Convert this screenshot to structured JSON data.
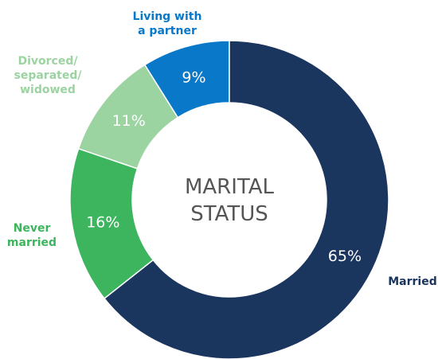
{
  "chart_data": {
    "type": "donut",
    "center_label": [
      "MARITAL",
      "STATUS"
    ],
    "categories": [
      "Married",
      "Never\nmarried",
      "Divorced/\nseparated/\nwidowed",
      "Living with\na partner"
    ],
    "values": [
      65,
      16,
      11,
      9
    ],
    "value_labels": [
      "65%",
      "16%",
      "11%",
      "9%"
    ],
    "colors": [
      "#1a355e",
      "#3db55e",
      "#9bd3a1",
      "#0a78c8"
    ],
    "label_colors": [
      "#1a355e",
      "#3db55e",
      "#9bd3a1",
      "#0a78c8"
    ]
  }
}
